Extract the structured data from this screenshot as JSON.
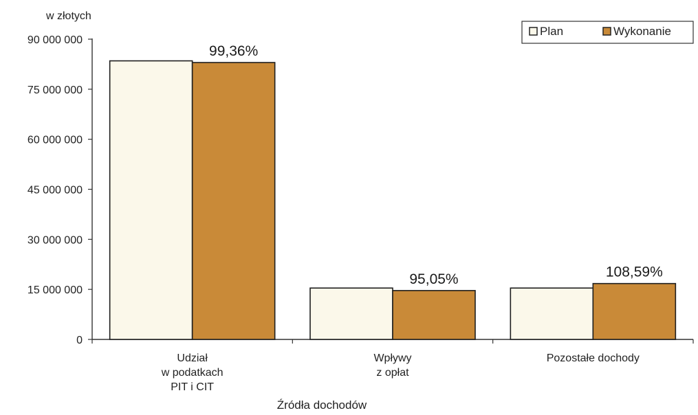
{
  "chart_data": {
    "type": "bar",
    "unit_label": "w złotych",
    "xlabel": "Źródła dochodów",
    "ylabel": "",
    "ylim": [
      0,
      90000000
    ],
    "yticks": [
      0,
      15000000,
      30000000,
      45000000,
      60000000,
      75000000,
      90000000
    ],
    "ytick_labels": [
      "0",
      "15 000 000",
      "30 000 000",
      "45 000 000",
      "60 000 000",
      "75 000 000",
      "90 000 000"
    ],
    "grid": false,
    "legend_position": "top-right",
    "categories": [
      [
        "Udział",
        "w podatkach",
        "PIT i CIT"
      ],
      [
        "Wpływy",
        "z opłat"
      ],
      [
        "Pozostałe dochody"
      ]
    ],
    "series": [
      {
        "name": "Plan",
        "color": "#fbf8ea",
        "values": [
          83500000,
          15400000,
          15400000
        ]
      },
      {
        "name": "Wykonanie",
        "color": "#c98a38",
        "values": [
          83000000,
          14650000,
          16750000
        ]
      }
    ],
    "annotations": [
      "99,36%",
      "95,05%",
      "108,59%"
    ]
  }
}
